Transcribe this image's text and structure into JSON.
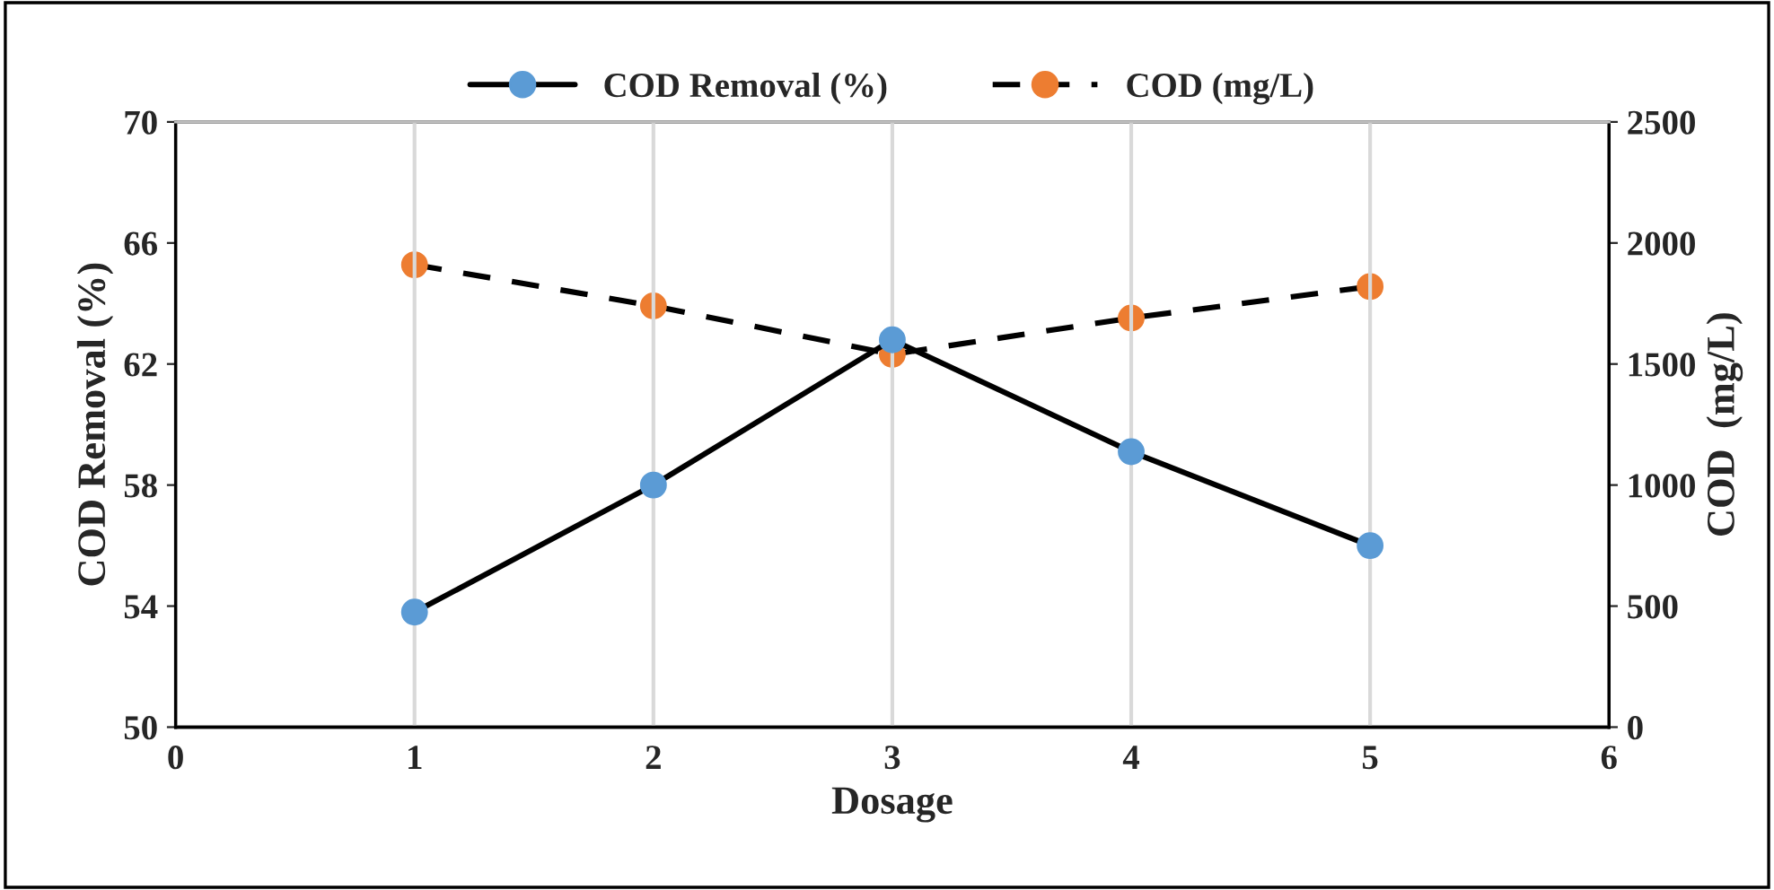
{
  "chart_data": {
    "type": "line",
    "xlabel": "Dosage",
    "ylabel": "COD Removal (%)",
    "y2label": "COD  (mg/L)",
    "x": [
      1,
      2,
      3,
      4,
      5
    ],
    "series": [
      {
        "name": "COD Removal (%)",
        "color": "#5b9bd5",
        "values": [
          53.8,
          58.0,
          62.8,
          59.1,
          56.0
        ],
        "line_style": "solid"
      },
      {
        "name": "COD (mg/L)",
        "color": "#ed7d31",
        "values": [
          1910,
          1740,
          1540,
          1690,
          1820
        ],
        "axis": "y2",
        "line_style": "dashed"
      }
    ],
    "xlim": [
      0,
      6
    ],
    "xticks": [
      0,
      1,
      2,
      3,
      4,
      5,
      6
    ],
    "ylim": [
      50,
      70
    ],
    "yticks": [
      50,
      54,
      58,
      62,
      66,
      70
    ],
    "y2lim": [
      0,
      2500
    ],
    "y2ticks": [
      0,
      500,
      1000,
      1500,
      2000,
      2500
    ],
    "grid": "x",
    "legend": "top",
    "marker": "circle"
  }
}
